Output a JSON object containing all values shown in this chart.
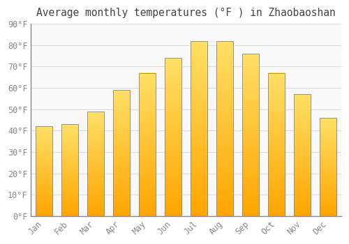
{
  "title": "Average monthly temperatures (°F ) in Zhaobaoshan",
  "months": [
    "Jan",
    "Feb",
    "Mar",
    "Apr",
    "May",
    "Jun",
    "Jul",
    "Aug",
    "Sep",
    "Oct",
    "Nov",
    "Dec"
  ],
  "values": [
    42,
    43,
    49,
    59,
    67,
    74,
    82,
    82,
    76,
    67,
    57,
    46
  ],
  "bar_color_top": "#FFD966",
  "bar_color_bottom": "#FFA500",
  "bar_edge_color": "#888888",
  "background_color": "#FFFFFF",
  "plot_bg_color": "#F8F8F8",
  "grid_color": "#DDDDDD",
  "ylim": [
    0,
    90
  ],
  "yticks": [
    0,
    10,
    20,
    30,
    40,
    50,
    60,
    70,
    80,
    90
  ],
  "title_fontsize": 10.5,
  "tick_fontsize": 8.5,
  "tick_color": "#888888",
  "title_color": "#444444",
  "bar_width": 0.65
}
